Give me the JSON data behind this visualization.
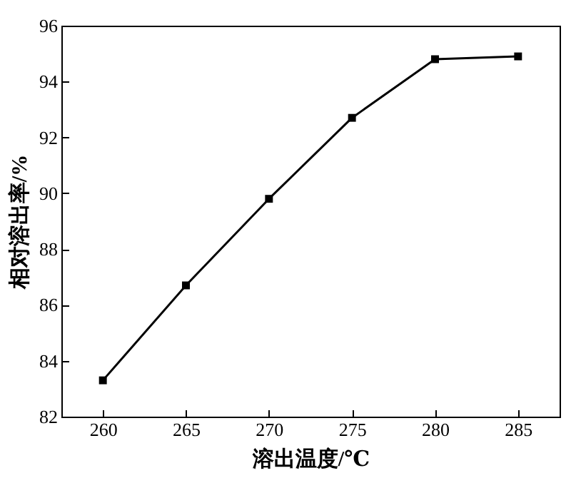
{
  "chart_data": {
    "type": "line",
    "xlabel": "溶出温度/℃",
    "ylabel": "相对溶出率/%",
    "x": [
      260,
      265,
      270,
      275,
      280,
      285
    ],
    "series": [
      {
        "color": "#000000",
        "values": [
          83.3,
          86.7,
          89.8,
          92.7,
          94.8,
          94.9
        ]
      }
    ],
    "xlim": [
      257.5,
      287.5
    ],
    "xticks": [
      260,
      265,
      270,
      275,
      280,
      285
    ],
    "ylim": [
      82,
      96
    ],
    "yticks": [
      82,
      84,
      86,
      88,
      90,
      92,
      94,
      96
    ],
    "marker": "square",
    "line_style": "solid"
  }
}
